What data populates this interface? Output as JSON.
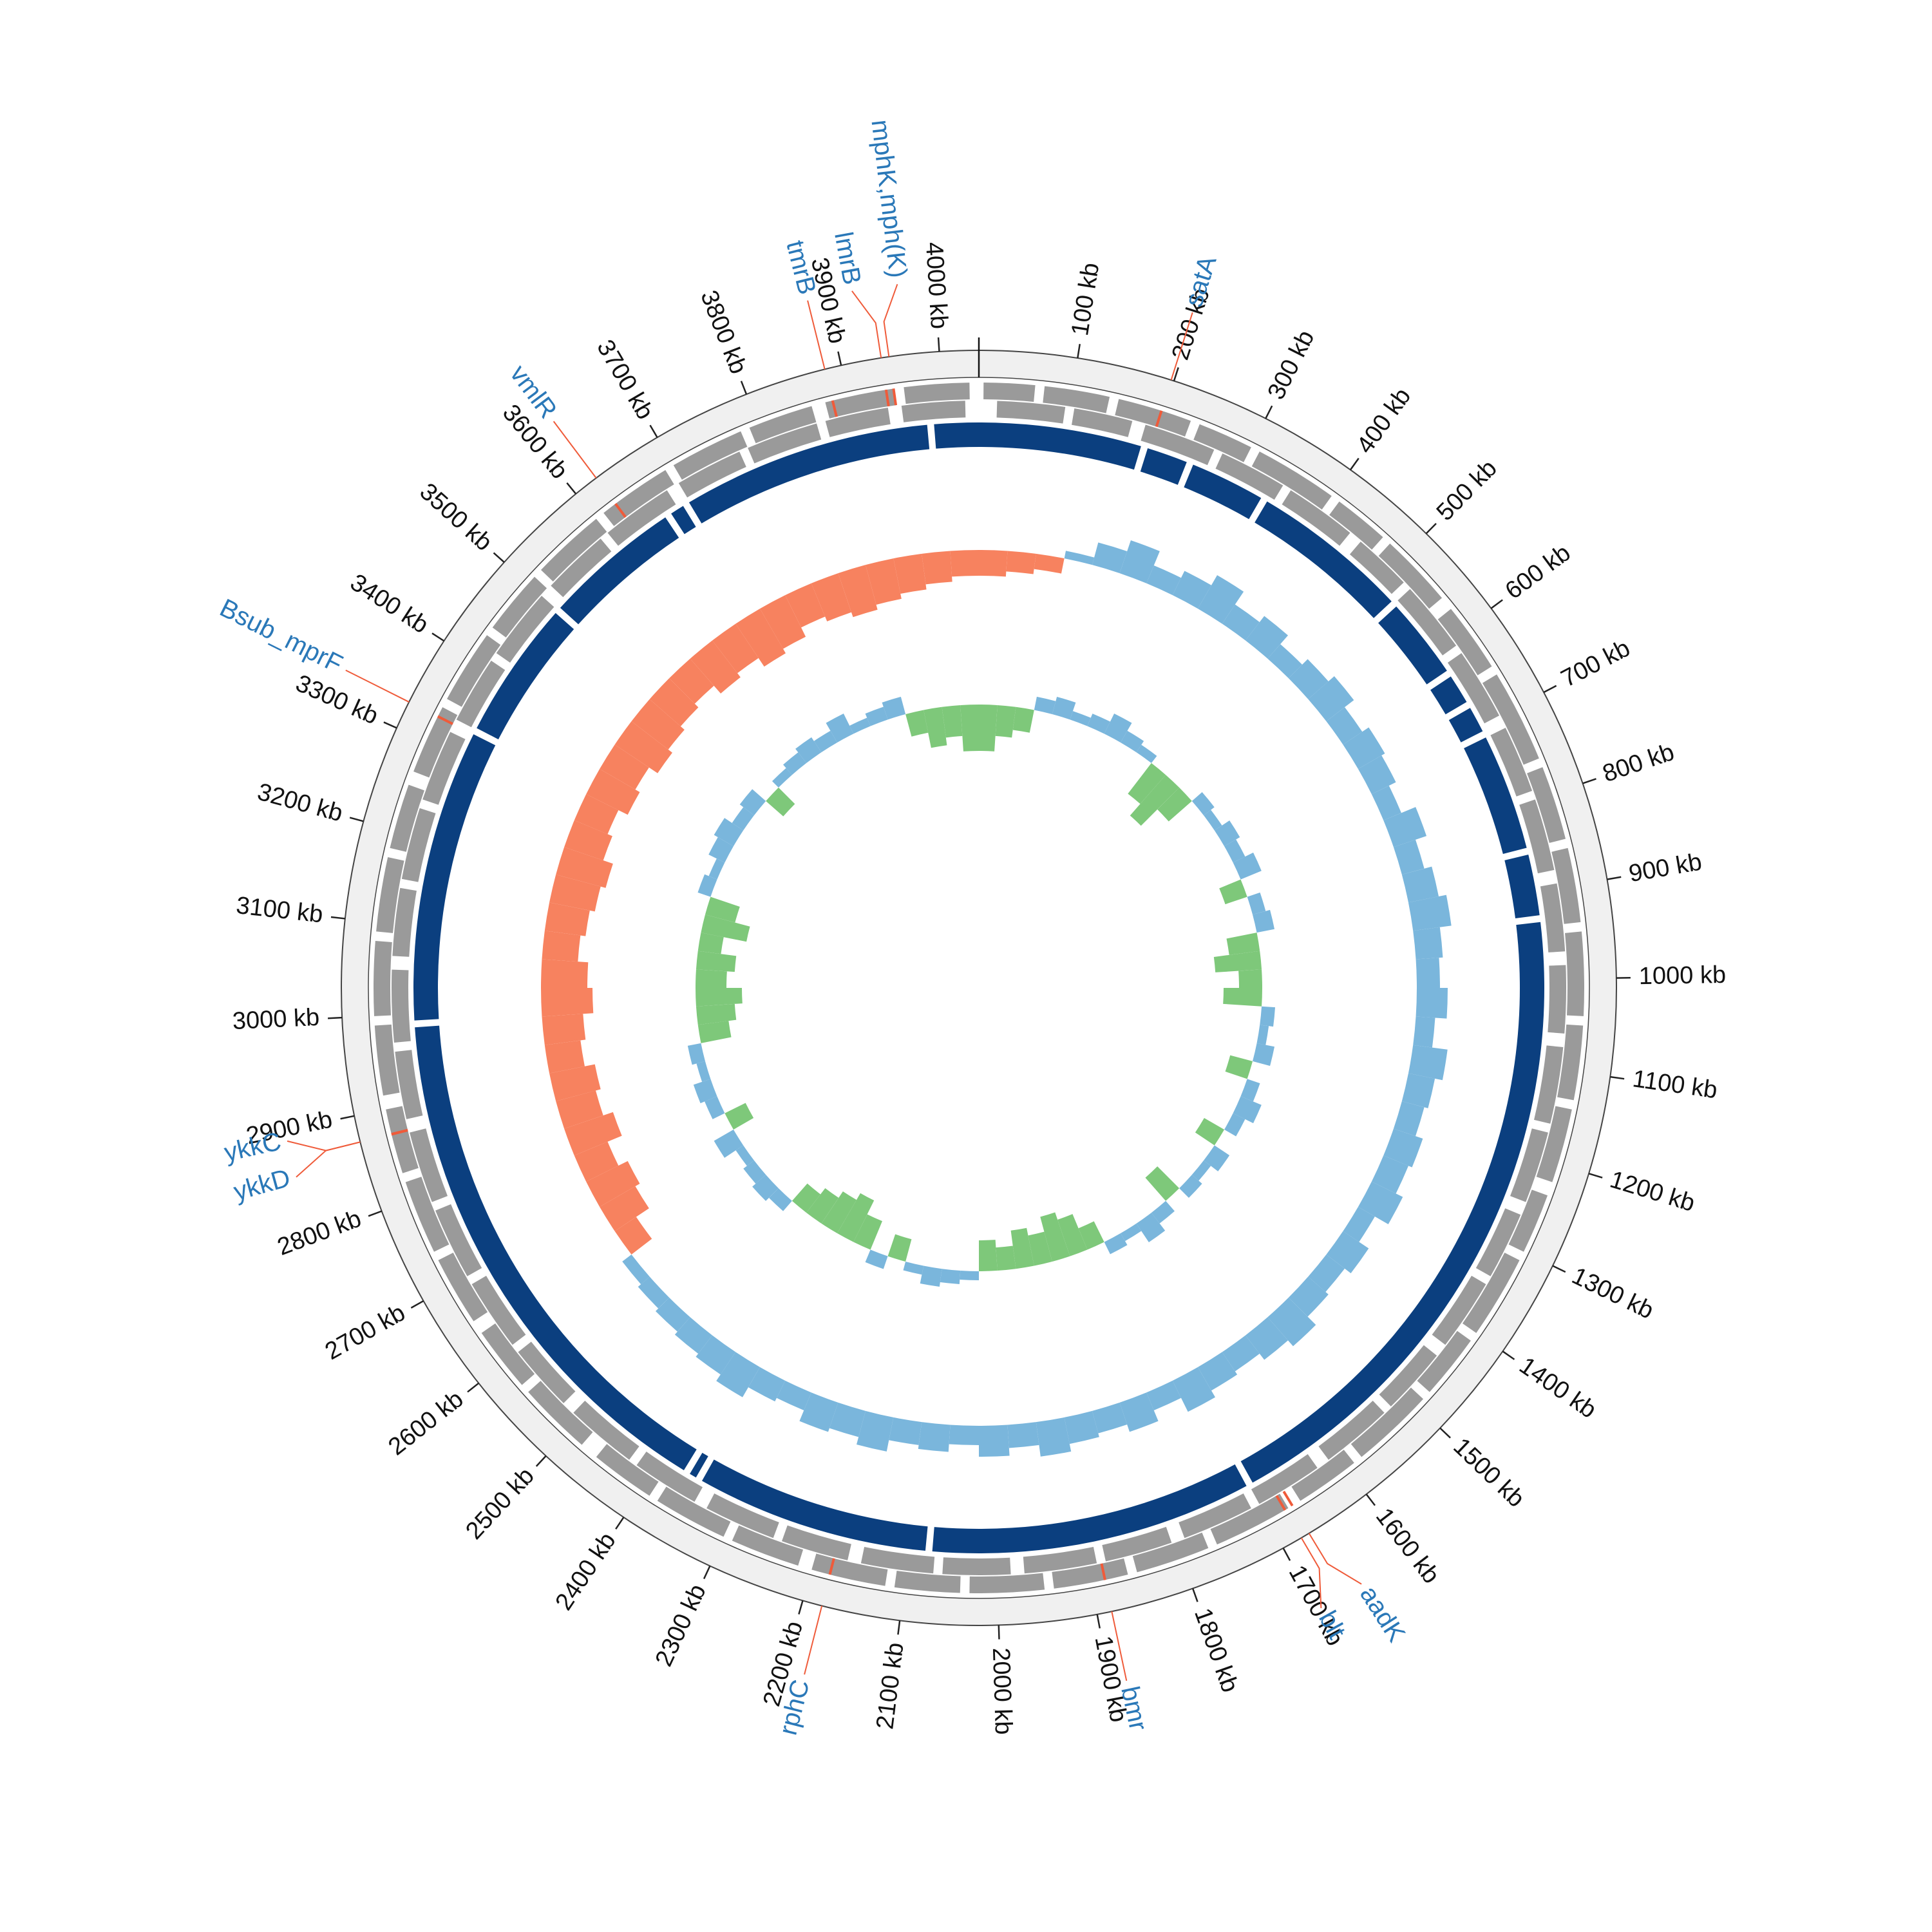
{
  "chart_data": {
    "type": "circular_genome",
    "xlim": [
      0,
      4040
    ],
    "xticks": [
      {
        "value": 100,
        "label": "100 kb"
      },
      {
        "value": 200,
        "label": "200 kb"
      },
      {
        "value": 300,
        "label": "300 kb"
      },
      {
        "value": 400,
        "label": "400 kb"
      },
      {
        "value": 500,
        "label": "500 kb"
      },
      {
        "value": 600,
        "label": "600 kb"
      },
      {
        "value": 700,
        "label": "700 kb"
      },
      {
        "value": 800,
        "label": "800 kb"
      },
      {
        "value": 900,
        "label": "900 kb"
      },
      {
        "value": 1000,
        "label": "1000 kb"
      },
      {
        "value": 1100,
        "label": "1100 kb"
      },
      {
        "value": 1200,
        "label": "1200 kb"
      },
      {
        "value": 1300,
        "label": "1300 kb"
      },
      {
        "value": 1400,
        "label": "1400 kb"
      },
      {
        "value": 1500,
        "label": "1500 kb"
      },
      {
        "value": 1600,
        "label": "1600 kb"
      },
      {
        "value": 1700,
        "label": "1700 kb"
      },
      {
        "value": 1800,
        "label": "1800 kb"
      },
      {
        "value": 1900,
        "label": "1900 kb"
      },
      {
        "value": 2000,
        "label": "2000 kb"
      },
      {
        "value": 2100,
        "label": "2100 kb"
      },
      {
        "value": 2200,
        "label": "2200 kb"
      },
      {
        "value": 2300,
        "label": "2300 kb"
      },
      {
        "value": 2400,
        "label": "2400 kb"
      },
      {
        "value": 2500,
        "label": "2500 kb"
      },
      {
        "value": 2600,
        "label": "2600 kb"
      },
      {
        "value": 2700,
        "label": "2700 kb"
      },
      {
        "value": 2800,
        "label": "2800 kb"
      },
      {
        "value": 2900,
        "label": "2900 kb"
      },
      {
        "value": 3000,
        "label": "3000 kb"
      },
      {
        "value": 3100,
        "label": "3100 kb"
      },
      {
        "value": 3200,
        "label": "3200 kb"
      },
      {
        "value": 3300,
        "label": "3300 kb"
      },
      {
        "value": 3400,
        "label": "3400 kb"
      },
      {
        "value": 3500,
        "label": "3500 kb"
      },
      {
        "value": 3600,
        "label": "3600 kb"
      },
      {
        "value": 3700,
        "label": "3700 kb"
      },
      {
        "value": 3800,
        "label": "3800 kb"
      },
      {
        "value": 3900,
        "label": "3900 kb"
      },
      {
        "value": 4000,
        "label": "4000 kb"
      }
    ],
    "genes": [
      {
        "name": "satA",
        "position": 197
      },
      {
        "name": "mphK,mph(K)",
        "position": 3949
      },
      {
        "name": "lmrB",
        "position": 3941
      },
      {
        "name": "tmrB",
        "position": 3883
      },
      {
        "name": "vmlR",
        "position": 3626
      },
      {
        "name": "Bsub_mprF",
        "position": 3329
      },
      {
        "name": "ykkC",
        "position": 2873
      },
      {
        "name": "ykkD",
        "position": 2873
      },
      {
        "name": "rphC",
        "position": 2180
      },
      {
        "name": "bmr",
        "position": 1885
      },
      {
        "name": "blt",
        "position": 1679
      },
      {
        "name": "aadK",
        "position": 1670
      }
    ],
    "cds_plus": [
      [
        5,
        60
      ],
      [
        70,
        140
      ],
      [
        150,
        230
      ],
      [
        240,
        300
      ],
      [
        310,
        400
      ],
      [
        410,
        470
      ],
      [
        480,
        560
      ],
      [
        575,
        650
      ],
      [
        660,
        760
      ],
      [
        770,
        850
      ],
      [
        860,
        940
      ],
      [
        950,
        1040
      ],
      [
        1050,
        1130
      ],
      [
        1140,
        1220
      ],
      [
        1235,
        1300
      ],
      [
        1310,
        1400
      ],
      [
        1410,
        1480
      ],
      [
        1490,
        1580
      ],
      [
        1590,
        1660
      ],
      [
        1675,
        1760
      ],
      [
        1770,
        1850
      ],
      [
        1860,
        1940
      ],
      [
        1950,
        2030
      ],
      [
        2040,
        2110
      ],
      [
        2120,
        2200
      ],
      [
        2215,
        2290
      ],
      [
        2300,
        2380
      ],
      [
        2390,
        2460
      ],
      [
        2480,
        2560
      ],
      [
        2570,
        2640
      ],
      [
        2655,
        2730
      ],
      [
        2740,
        2820
      ],
      [
        2830,
        2900
      ],
      [
        2915,
        2990
      ],
      [
        3000,
        3080
      ],
      [
        3090,
        3170
      ],
      [
        3180,
        3250
      ],
      [
        3265,
        3340
      ],
      [
        3350,
        3430
      ],
      [
        3440,
        3510
      ],
      [
        3520,
        3600
      ],
      [
        3610,
        3690
      ],
      [
        3700,
        3780
      ],
      [
        3790,
        3860
      ],
      [
        3875,
        3950
      ],
      [
        3960,
        4030
      ]
    ],
    "cds_minus": [
      [
        20,
        95
      ],
      [
        105,
        170
      ],
      [
        185,
        265
      ],
      [
        275,
        350
      ],
      [
        360,
        440
      ],
      [
        455,
        520
      ],
      [
        530,
        610
      ],
      [
        620,
        700
      ],
      [
        715,
        790
      ],
      [
        800,
        880
      ],
      [
        895,
        970
      ],
      [
        985,
        1060
      ],
      [
        1075,
        1160
      ],
      [
        1170,
        1250
      ],
      [
        1265,
        1340
      ],
      [
        1350,
        1430
      ],
      [
        1445,
        1520
      ],
      [
        1530,
        1610
      ],
      [
        1625,
        1700
      ],
      [
        1710,
        1790
      ],
      [
        1805,
        1880
      ],
      [
        1890,
        1970
      ],
      [
        1985,
        2060
      ],
      [
        2070,
        2150
      ],
      [
        2165,
        2240
      ],
      [
        2250,
        2330
      ],
      [
        2345,
        2420
      ],
      [
        2430,
        2510
      ],
      [
        2525,
        2600
      ],
      [
        2610,
        2690
      ],
      [
        2700,
        2780
      ],
      [
        2790,
        2870
      ],
      [
        2885,
        2960
      ],
      [
        2970,
        3050
      ],
      [
        3065,
        3140
      ],
      [
        3150,
        3230
      ],
      [
        3240,
        3320
      ],
      [
        3335,
        3410
      ],
      [
        3420,
        3500
      ],
      [
        3515,
        3590
      ],
      [
        3600,
        3680
      ],
      [
        3695,
        3770
      ],
      [
        3780,
        3860
      ],
      [
        3870,
        3940
      ],
      [
        3955,
        4025
      ]
    ],
    "contig_breaks": [
      191,
      246,
      340,
      530,
      631,
      673,
      711,
      853,
      931,
      1699,
      2077,
      2353,
      2369,
      2989,
      3333,
      3500,
      3666,
      3690,
      3985
    ],
    "gc_skew_values": [
      -0.5,
      -0.4,
      -0.3,
      0.2,
      0.6,
      0.9,
      0.5,
      0.7,
      1.0,
      0.6,
      0.8,
      0.5,
      0.7,
      0.9,
      0.6,
      0.8,
      0.7,
      0.5,
      0.9,
      0.6,
      0.8,
      1.0,
      0.7,
      0.6,
      0.8,
      0.5,
      0.9,
      0.7,
      0.6,
      0.8,
      0.7,
      0.9,
      0.5,
      0.8,
      0.6,
      0.7,
      1.0,
      0.8,
      0.6,
      0.7,
      0.9,
      0.5,
      0.8,
      0.6,
      0.7,
      0.9,
      0.6,
      0.8,
      0.5,
      0.7,
      0.6,
      0.9,
      0.7,
      0.8,
      0.5,
      0.6,
      0.9,
      0.7,
      0.6,
      0.5,
      0.4,
      0.3,
      -0.5,
      -0.8,
      -0.9,
      -0.7,
      -1.0,
      -0.8,
      -0.9,
      -0.7,
      -0.8,
      -1.0,
      -0.9,
      -0.7,
      -0.8,
      -0.9,
      -1.0,
      -0.8,
      -0.7,
      -0.9,
      -0.8,
      -1.0,
      -0.9,
      -0.8,
      -0.7,
      -0.9,
      -0.8,
      -1.0,
      -0.9,
      -0.7,
      -0.8,
      -0.9,
      -0.8,
      -0.7,
      -0.6,
      -0.5
    ],
    "gc_content_values": [
      -0.6,
      -0.4,
      -0.3,
      0.3,
      0.4,
      0.2,
      0.3,
      0.5,
      0.3,
      0.2,
      -0.5,
      -0.7,
      -0.4,
      0.3,
      0.2,
      0.4,
      0.3,
      0.5,
      -0.3,
      0.3,
      0.4,
      -0.4,
      -0.6,
      -0.3,
      -0.5,
      0.3,
      0.2,
      0.4,
      -0.3,
      0.3,
      0.5,
      0.3,
      -0.3,
      0.4,
      0.2,
      0.3,
      -0.4,
      0.3,
      0.5,
      0.2,
      0.3,
      -0.3,
      -0.5,
      -0.6,
      -0.4,
      -0.5,
      -0.3,
      -0.4,
      0.2,
      0.3,
      0.4,
      0.2,
      -0.3,
      0.3,
      -0.4,
      -0.6,
      -0.5,
      -0.4,
      -0.3,
      0.3,
      0.4,
      0.3,
      0.2,
      0.5,
      -0.3,
      0.3,
      0.4,
      0.2,
      0.3,
      -0.4,
      -0.5,
      -0.6,
      -0.4,
      -0.5,
      -0.3,
      -0.6,
      -0.4,
      0.3,
      0.2,
      0.4,
      0.5,
      0.3,
      0.4,
      -0.3,
      0.2,
      0.3,
      0.4,
      0.3,
      0.5,
      0.2,
      0.3,
      0.4,
      -0.3,
      -0.5,
      -0.4,
      -0.6
    ],
    "colors": {
      "cds": "#9a9a9a",
      "contig": "#0b3f7f",
      "skew_positive": "#7ab6dc",
      "skew_negative": "#f7825f",
      "content_positive": "#7ab6dc",
      "content_negative": "#7ec87a",
      "gene_label": "#2a78b8",
      "gene_leader": "#ef5b3a"
    }
  }
}
